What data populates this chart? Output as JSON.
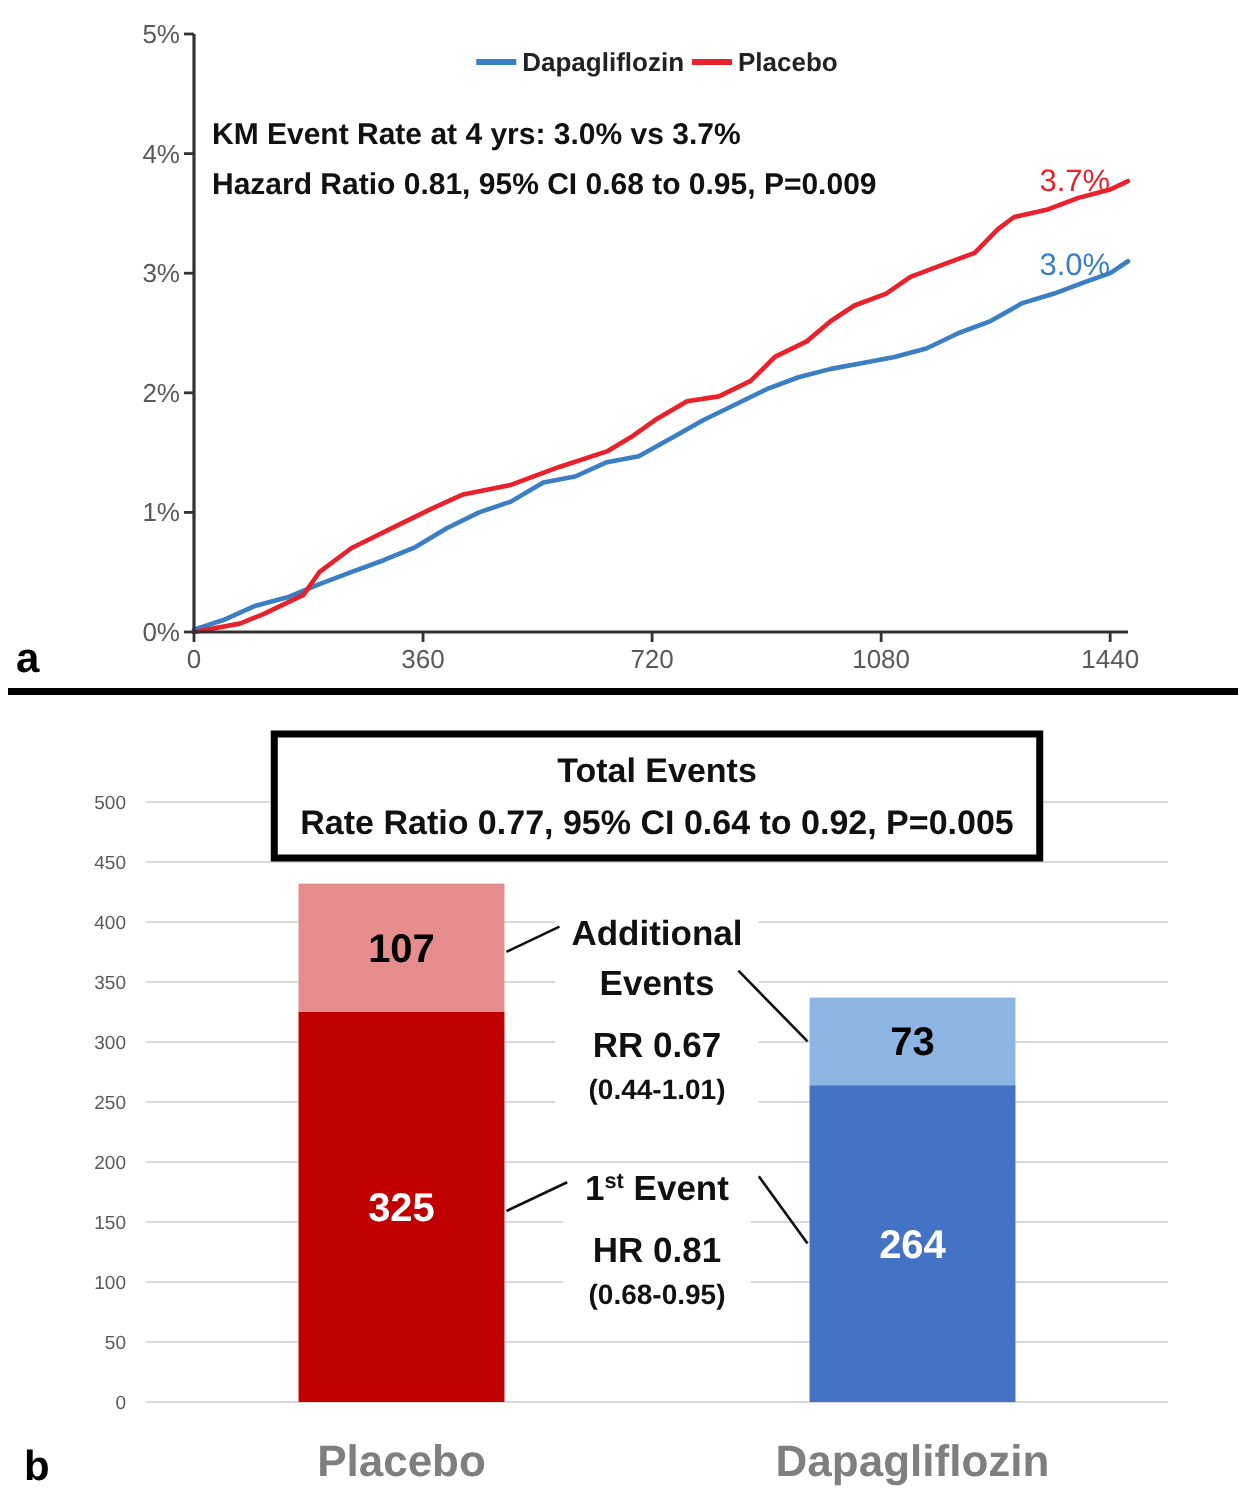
{
  "chart_data": [
    {
      "type": "line",
      "xlim": [
        0,
        1468
      ],
      "xticks": [
        0,
        360,
        720,
        1080,
        1440
      ],
      "ylim": [
        0,
        5
      ],
      "yticks": [
        {
          "value": 0,
          "label": "0%"
        },
        {
          "value": 1,
          "label": "1%"
        },
        {
          "value": 2,
          "label": "2%"
        },
        {
          "value": 3,
          "label": "3%"
        },
        {
          "value": 4,
          "label": "4%"
        },
        {
          "value": 5,
          "label": "5%"
        }
      ],
      "legend": "top",
      "series": [
        {
          "name": "Dapagliflozin",
          "color": "#3a7ec3",
          "x": [
            0,
            46,
            97,
            147,
            197,
            247,
            298,
            348,
            398,
            448,
            498,
            549,
            599,
            649,
            699,
            750,
            800,
            850,
            900,
            950,
            1001,
            1051,
            1101,
            1151,
            1202,
            1252,
            1302,
            1352,
            1402,
            1440,
            1468
          ],
          "values": [
            0.02,
            0.1,
            0.22,
            0.29,
            0.4,
            0.5,
            0.6,
            0.71,
            0.87,
            1.0,
            1.09,
            1.25,
            1.3,
            1.42,
            1.47,
            1.62,
            1.77,
            1.9,
            2.03,
            2.13,
            2.2,
            2.25,
            2.3,
            2.37,
            2.5,
            2.6,
            2.75,
            2.83,
            2.93,
            3.0,
            3.1
          ],
          "value_labels": [
            null,
            null,
            null,
            null,
            null,
            null,
            null,
            null,
            null,
            null,
            null,
            null,
            null,
            null,
            null,
            null,
            null,
            null,
            null,
            null,
            null,
            null,
            null,
            null,
            null,
            null,
            null,
            null,
            null,
            "3.0%",
            null
          ]
        },
        {
          "name": "Placebo",
          "color": "#e8212b",
          "x": [
            0,
            72,
            109,
            172,
            197,
            247,
            323,
            373,
            423,
            498,
            574,
            649,
            687,
            724,
            775,
            825,
            875,
            913,
            963,
            1001,
            1038,
            1088,
            1126,
            1176,
            1227,
            1264,
            1289,
            1340,
            1390,
            1440,
            1468
          ],
          "values": [
            0,
            0.07,
            0.15,
            0.31,
            0.5,
            0.7,
            0.9,
            1.03,
            1.15,
            1.23,
            1.38,
            1.51,
            1.63,
            1.77,
            1.93,
            1.97,
            2.1,
            2.3,
            2.43,
            2.6,
            2.73,
            2.83,
            2.97,
            3.07,
            3.17,
            3.37,
            3.47,
            3.53,
            3.63,
            3.7,
            3.77
          ],
          "value_labels": [
            null,
            null,
            null,
            null,
            null,
            null,
            null,
            null,
            null,
            null,
            null,
            null,
            null,
            null,
            null,
            null,
            null,
            null,
            null,
            null,
            null,
            null,
            null,
            null,
            null,
            null,
            null,
            null,
            null,
            "3.7%",
            null
          ]
        }
      ],
      "annotations": [
        "a",
        "KM Event Rate at 4 yrs: 3.0% vs 3.7%",
        "Hazard Ratio 0.81, 95% CI 0.68 to 0.95, P=0.009"
      ]
    },
    {
      "type": "bar",
      "stacked": true,
      "title": "Total Events",
      "subtitle": "Rate Ratio 0.77, 95% CI 0.64 to 0.92, P=0.005",
      "categories": [
        "Placebo",
        "Dapagliflozin"
      ],
      "ylim": [
        0,
        500
      ],
      "yticks": [
        0,
        50,
        100,
        150,
        200,
        250,
        300,
        350,
        400,
        450,
        500
      ],
      "grid": "y",
      "data_labels": true,
      "series": [
        {
          "name": "1$^{st}$ Event",
          "colors": [
            "#c00000",
            "#4472c4"
          ],
          "values": [
            325,
            264
          ]
        },
        {
          "name": "Additional Events",
          "colors": [
            "#e58c8c",
            "#8db5e3"
          ],
          "values": [
            107,
            73
          ]
        }
      ],
      "annotations": [
        "b",
        "HR 0.81",
        "(0.68-0.95)",
        "RR 0.67",
        "(0.44-1.01)"
      ]
    }
  ]
}
